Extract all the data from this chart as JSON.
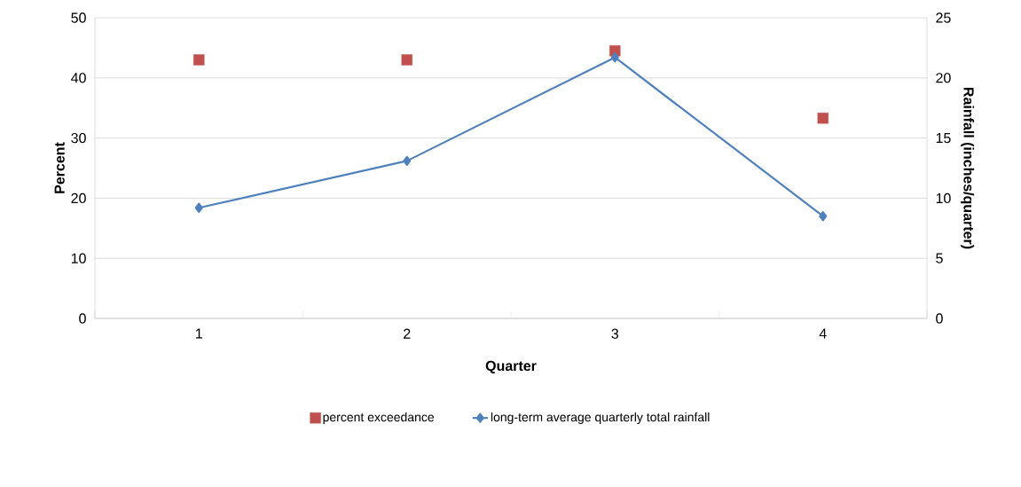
{
  "chart_data": {
    "type": "line",
    "xlabel": "Quarter",
    "ylabel": "Percent",
    "y2label": "Rainfall (inches/quarter)",
    "categories": [
      "1",
      "2",
      "3",
      "4"
    ],
    "ylim": [
      0,
      50
    ],
    "yticks": [
      0,
      10,
      20,
      30,
      40,
      50
    ],
    "y2lim": [
      0,
      25
    ],
    "y2ticks": [
      0,
      5,
      10,
      15,
      20,
      25
    ],
    "grid": "y",
    "legend": "bottom",
    "series": [
      {
        "name": "percent exceedance",
        "type": "scatter",
        "color": "#c0504d",
        "marker": "square",
        "values": [
          43,
          43,
          44.5,
          33.3
        ]
      },
      {
        "name": "long-term average quarterly total rainfall",
        "axis": "y2",
        "color": "#4f81bd",
        "marker": "diamond",
        "line_style": "solid",
        "values": [
          9.2,
          13.1,
          21.7,
          8.5
        ]
      }
    ]
  }
}
